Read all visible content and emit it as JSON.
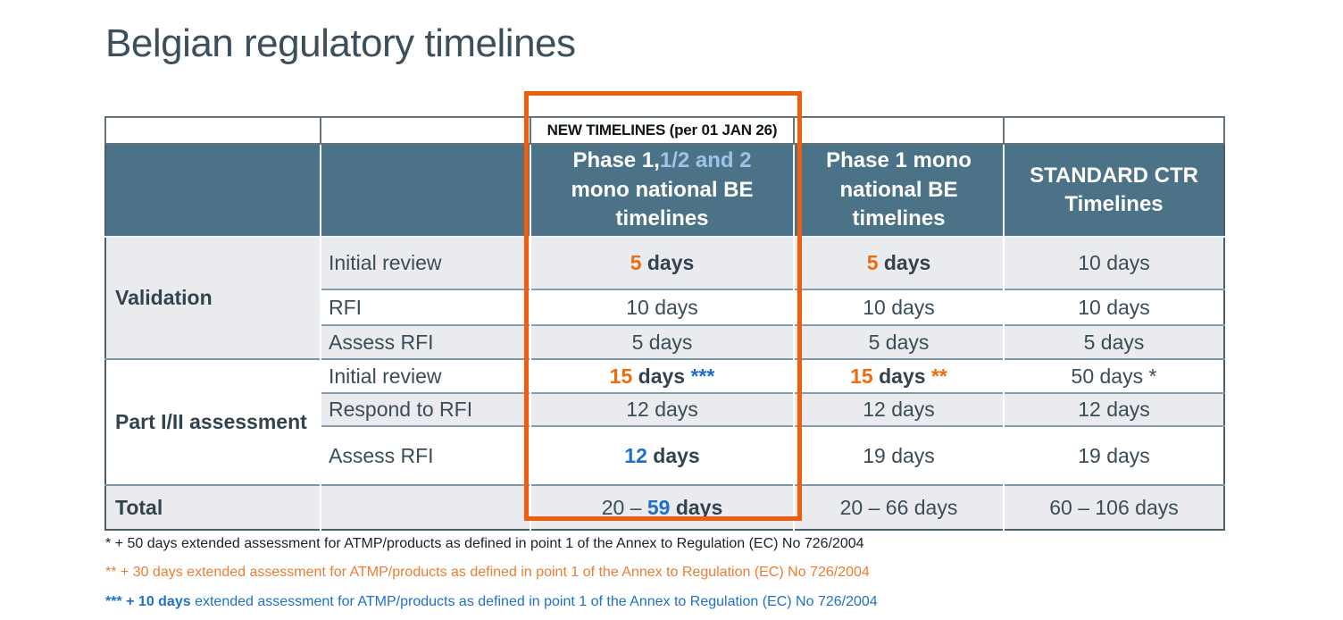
{
  "slide": {
    "title": "Belgian regulatory timelines"
  },
  "colors": {
    "title_text": "#3c4f5a",
    "header_bg": "#4c7287",
    "header_text": "#ffffff",
    "header_accent_text": "#9dc3e6",
    "row_alt_bg": "#e9ebee",
    "body_text": "#3a4d58",
    "orange_accent": "#ee6b0e",
    "blue_accent": "#1f6fc9",
    "footnote_orange": "#ed7d31",
    "footnote_blue": "#2071c7",
    "highlight_box_border": "#f25c0d",
    "row_border": "#849cab"
  },
  "table": {
    "banner": "NEW TIMELINES (per 01 JAN 26)",
    "headers": {
      "phase12": {
        "lead": "Phase 1,",
        "accent": "1/2 and 2",
        "rest": " mono national BE timelines"
      },
      "phase1": "Phase 1 mono national BE timelines",
      "standard": "STANDARD CTR Timelines"
    },
    "groups": {
      "validation": "Validation",
      "part": "Part I/II assessment",
      "total": "Total"
    },
    "rows": {
      "v1": {
        "activity": "Initial review",
        "new12": {
          "num": "5",
          "unit": " days"
        },
        "new1": {
          "num": "5",
          "unit": " days"
        },
        "std": "10 days"
      },
      "v2": {
        "activity": "RFI",
        "new12": "10 days",
        "new1": "10 days",
        "std": "10 days"
      },
      "v3": {
        "activity": "Assess RFI",
        "new12": "5 days",
        "new1": "5 days",
        "std": "5 days"
      },
      "p1": {
        "activity": "Initial review",
        "new12": {
          "num": "15",
          "unit": " days",
          "note": "***"
        },
        "new1": {
          "num": "15",
          "unit": " days",
          "note": "**"
        },
        "std": "50 days *"
      },
      "p2": {
        "activity": "Respond to RFI",
        "new12": "12 days",
        "new1": "12 days",
        "std": "12 days"
      },
      "p3": {
        "activity": "Assess RFI",
        "new12": {
          "num": "12",
          "unit": " days"
        },
        "new1": "19 days",
        "std": "19 days"
      },
      "total": {
        "new12": {
          "prefix": "20 – ",
          "num": "59",
          "unit": " days"
        },
        "new1": "20 – 66 days",
        "std": "60 – 106 days"
      }
    }
  },
  "footnotes": {
    "fn1": {
      "text": "* + 50 days extended assessment for ATMP/products as defined in point 1 of the Annex to Regulation (EC) No 726/2004"
    },
    "fn2": {
      "text": "** + 30 days extended assessment for ATMP/products as defined in point 1 of the Annex to Regulation (EC) No 726/2004"
    },
    "fn3": {
      "lead": "*** + 10 days",
      "rest": " extended assessment for ATMP/products as defined in point 1 of the Annex to Regulation (EC) No 726/2004"
    }
  }
}
